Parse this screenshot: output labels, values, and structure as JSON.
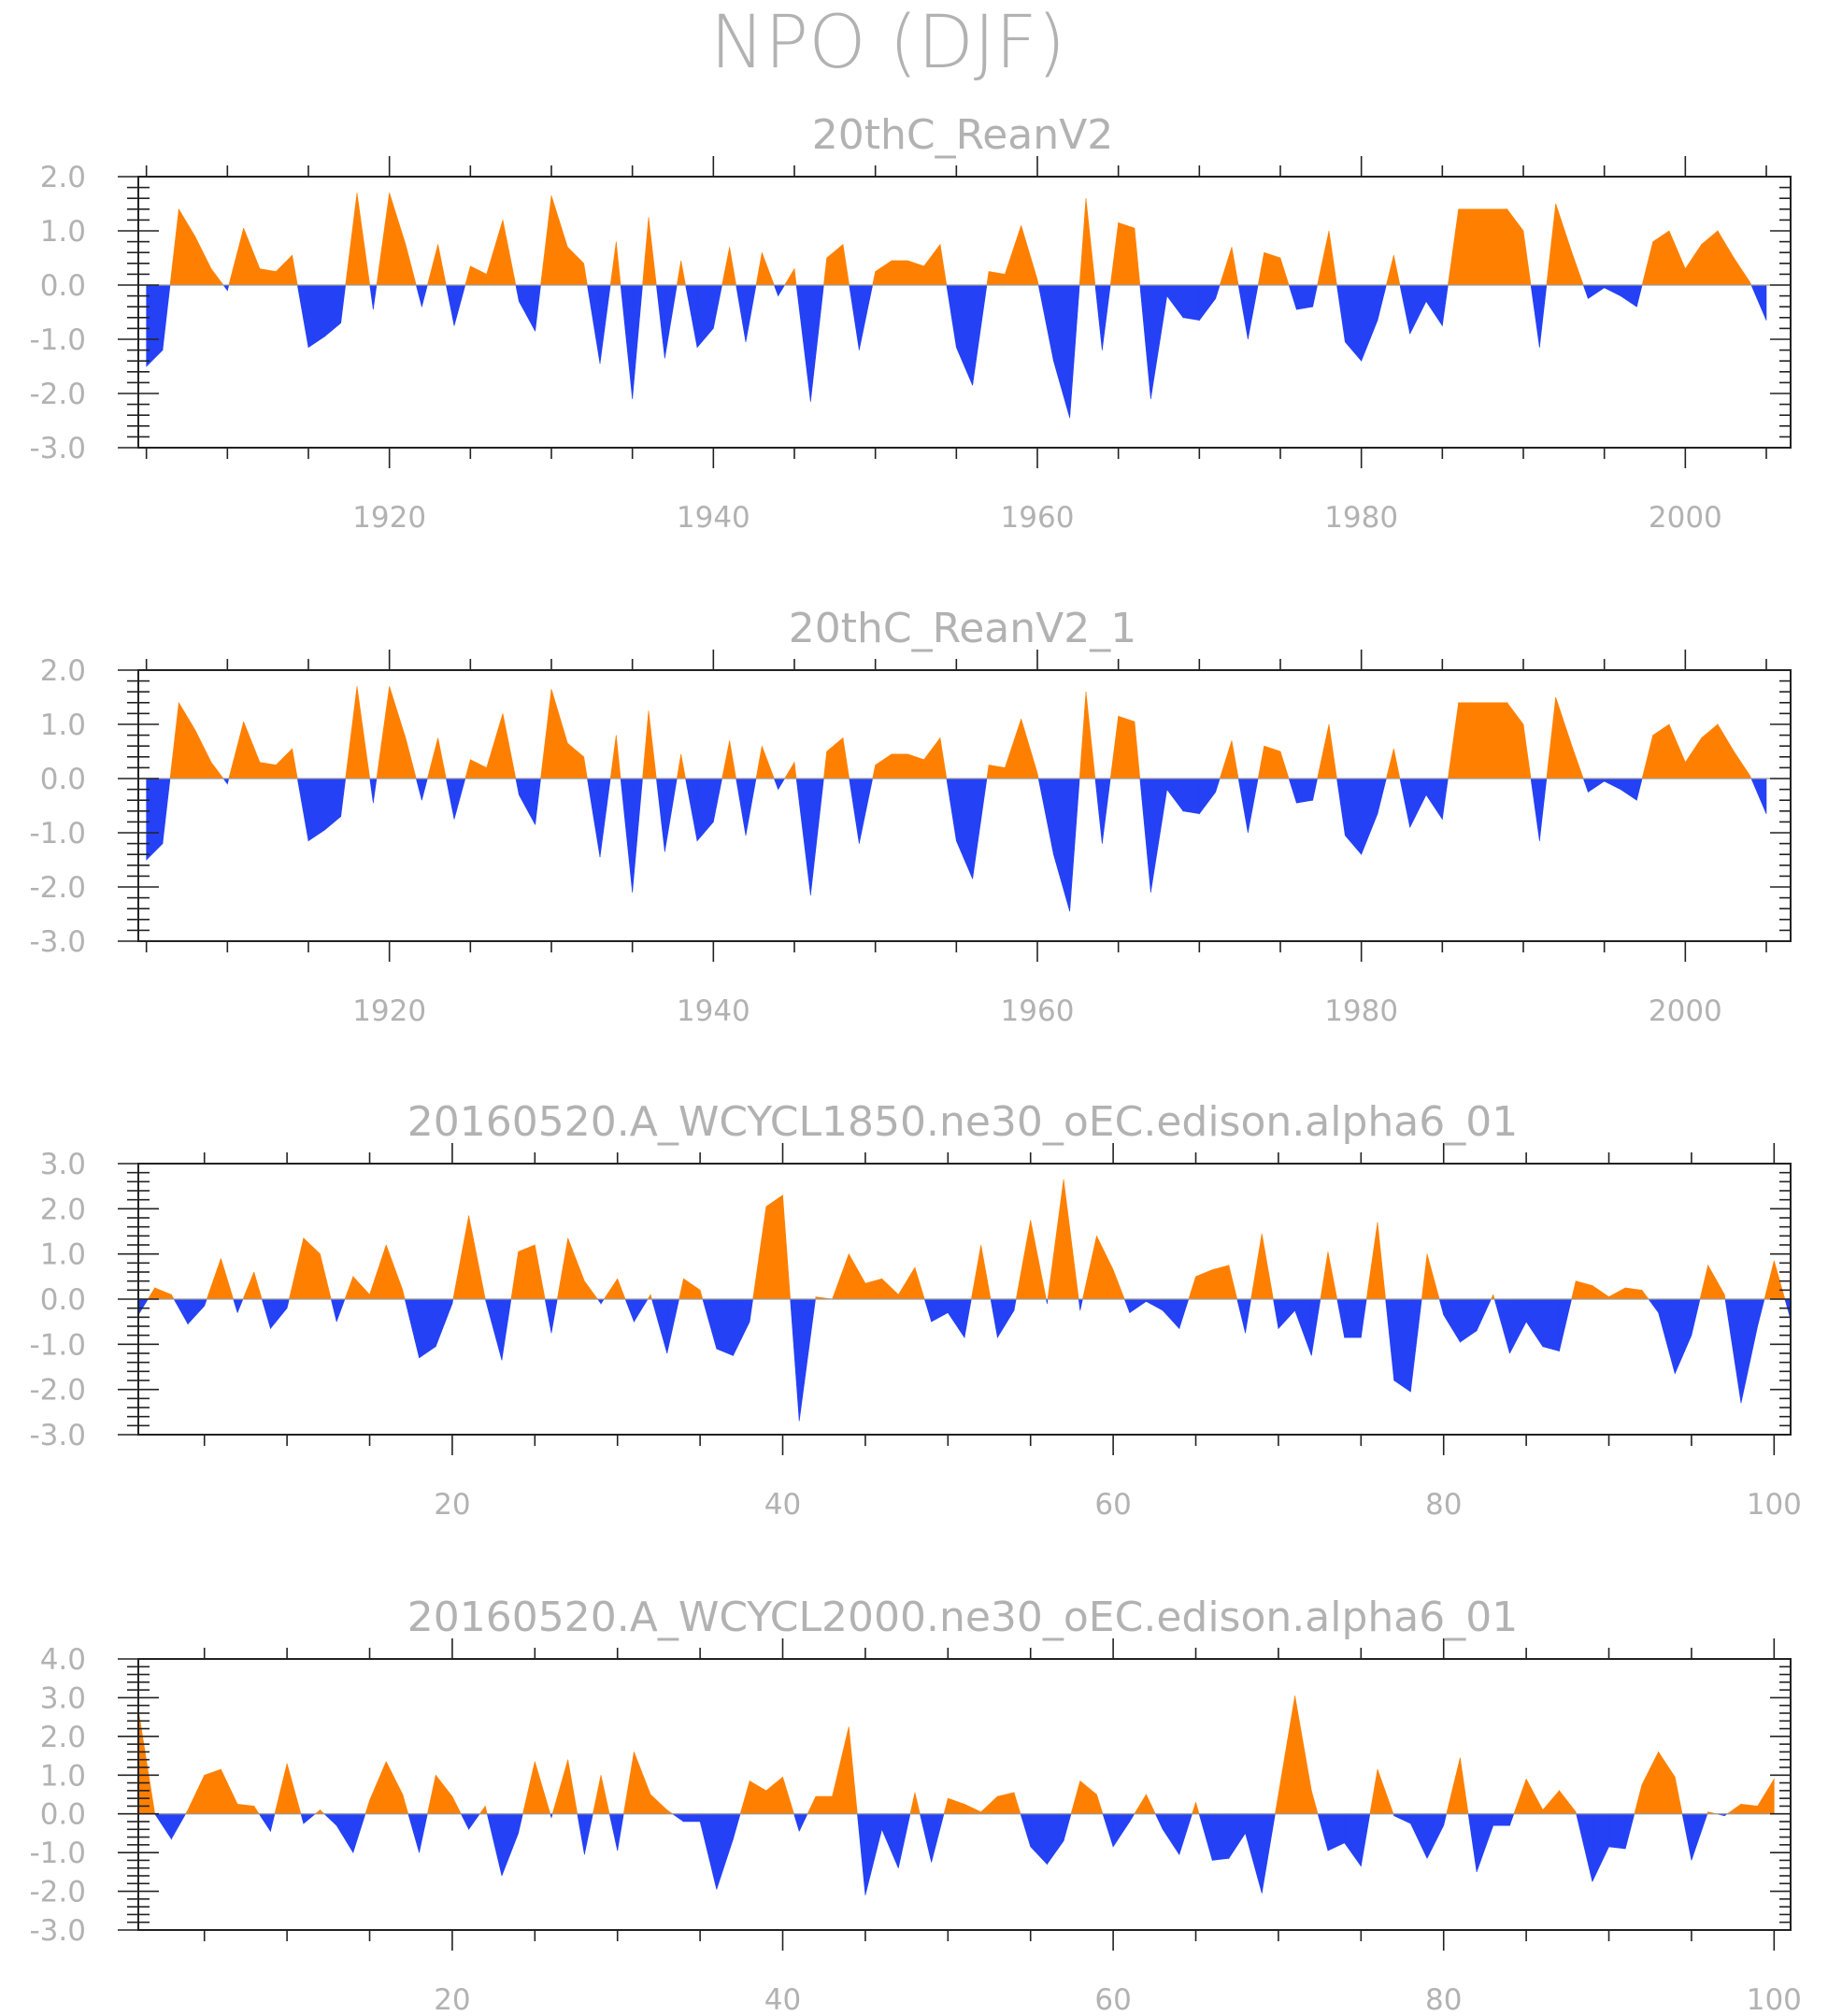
{
  "figure": {
    "title": "NPO (DJF)",
    "colors": {
      "positive": "#ff8000",
      "negative": "#2441f5",
      "text": "#b2b2b2",
      "frame": "#222222"
    }
  },
  "chart_data": [
    {
      "type": "area",
      "title": "20thC_ReanV2",
      "x_start": 1905,
      "xlim": [
        1904.5,
        2006.5
      ],
      "xticks": [
        1920,
        1940,
        1960,
        1980,
        2000
      ],
      "xtick_labels": [
        "1920",
        "1940",
        "1960",
        "1980",
        "2000"
      ],
      "ylim": [
        -3.0,
        2.0
      ],
      "yticks": [
        -3.0,
        -2.0,
        -1.0,
        0.0,
        1.0,
        2.0
      ],
      "ytick_labels": [
        "-3.0",
        "-2.0",
        "-1.0",
        "0.0",
        "1.0",
        "2.0"
      ],
      "values": [
        -1.5,
        -1.2,
        1.4,
        0.9,
        0.3,
        -0.1,
        1.05,
        0.3,
        0.25,
        0.55,
        -1.15,
        -0.95,
        -0.7,
        1.7,
        -0.45,
        1.7,
        0.75,
        -0.4,
        0.75,
        -0.75,
        0.35,
        0.2,
        1.2,
        -0.3,
        -0.85,
        1.65,
        0.7,
        0.4,
        -1.45,
        0.8,
        -2.1,
        1.25,
        -1.35,
        0.45,
        -1.15,
        -0.8,
        0.7,
        -1.05,
        0.6,
        -0.2,
        0.3,
        -2.15,
        0.5,
        0.75,
        -1.2,
        0.25,
        0.45,
        0.45,
        0.35,
        0.75,
        -1.15,
        -1.85,
        0.25,
        0.2,
        1.1,
        0.1,
        -1.4,
        -2.45,
        1.6,
        -1.2,
        1.15,
        1.05,
        -2.1,
        -0.2,
        -0.6,
        -0.65,
        -0.25,
        0.7,
        -1.0,
        0.6,
        0.5,
        -0.45,
        -0.4,
        1.0,
        -1.05,
        -1.4,
        -0.65,
        0.55,
        -0.9,
        -0.3,
        -0.75,
        1.4,
        1.4,
        1.4,
        1.4,
        1.0,
        -1.15,
        1.5,
        0.6,
        -0.25,
        -0.05,
        -0.2,
        -0.4,
        0.8,
        1.0,
        0.3,
        0.75,
        1.0,
        0.5,
        0.05,
        -0.65
      ]
    },
    {
      "type": "area",
      "title": "20thC_ReanV2_1",
      "x_start": 1905,
      "xlim": [
        1904.5,
        2006.5
      ],
      "xticks": [
        1920,
        1940,
        1960,
        1980,
        2000
      ],
      "xtick_labels": [
        "1920",
        "1940",
        "1960",
        "1980",
        "2000"
      ],
      "ylim": [
        -3.0,
        2.0
      ],
      "yticks": [
        -3.0,
        -2.0,
        -1.0,
        0.0,
        1.0,
        2.0
      ],
      "ytick_labels": [
        "-3.0",
        "-2.0",
        "-1.0",
        "0.0",
        "1.0",
        "2.0"
      ],
      "values": [
        -1.5,
        -1.2,
        1.4,
        0.9,
        0.3,
        -0.1,
        1.05,
        0.3,
        0.25,
        0.55,
        -1.15,
        -0.95,
        -0.7,
        1.7,
        -0.45,
        1.7,
        0.75,
        -0.4,
        0.75,
        -0.75,
        0.35,
        0.2,
        1.2,
        -0.3,
        -0.85,
        1.65,
        0.65,
        0.4,
        -1.45,
        0.8,
        -2.1,
        1.25,
        -1.35,
        0.45,
        -1.15,
        -0.8,
        0.7,
        -1.05,
        0.6,
        -0.2,
        0.3,
        -2.15,
        0.5,
        0.75,
        -1.2,
        0.25,
        0.45,
        0.45,
        0.35,
        0.75,
        -1.15,
        -1.85,
        0.25,
        0.2,
        1.1,
        0.1,
        -1.4,
        -2.45,
        1.6,
        -1.2,
        1.15,
        1.05,
        -2.1,
        -0.2,
        -0.6,
        -0.65,
        -0.25,
        0.7,
        -1.0,
        0.6,
        0.5,
        -0.45,
        -0.4,
        1.0,
        -1.05,
        -1.4,
        -0.65,
        0.55,
        -0.9,
        -0.3,
        -0.75,
        1.4,
        1.4,
        1.4,
        1.4,
        1.0,
        -1.15,
        1.5,
        0.6,
        -0.25,
        -0.05,
        -0.2,
        -0.4,
        0.8,
        1.0,
        0.3,
        0.75,
        1.0,
        0.5,
        0.05,
        -0.65
      ]
    },
    {
      "type": "area",
      "title": "20160520.A_WCYCL1850.ne30_oEC.edison.alpha6_01",
      "x_start": 1,
      "xlim": [
        1,
        101
      ],
      "xticks": [
        20,
        40,
        60,
        80,
        100
      ],
      "xtick_labels": [
        "20",
        "40",
        "60",
        "80",
        "100"
      ],
      "ylim": [
        -3.0,
        3.0
      ],
      "yticks": [
        -3.0,
        -2.0,
        -1.0,
        0.0,
        1.0,
        2.0,
        3.0
      ],
      "ytick_labels": [
        "-3.0",
        "-2.0",
        "-1.0",
        "0.0",
        "1.0",
        "2.0",
        "3.0"
      ],
      "values": [
        -0.35,
        0.25,
        0.1,
        -0.55,
        -0.15,
        0.9,
        -0.3,
        0.6,
        -0.65,
        -0.2,
        1.35,
        1.0,
        -0.5,
        0.5,
        0.1,
        1.2,
        0.2,
        -1.3,
        -1.05,
        -0.1,
        1.85,
        0.0,
        -1.35,
        1.05,
        1.2,
        -0.75,
        1.35,
        0.4,
        -0.1,
        0.45,
        -0.5,
        0.1,
        -1.2,
        0.45,
        0.2,
        -1.1,
        -1.25,
        -0.5,
        2.05,
        2.3,
        -2.7,
        0.05,
        0.0,
        1.0,
        0.35,
        0.45,
        0.1,
        0.7,
        -0.5,
        -0.3,
        -0.85,
        1.2,
        -0.85,
        -0.25,
        1.75,
        -0.1,
        2.65,
        -0.25,
        1.4,
        0.65,
        -0.3,
        -0.05,
        -0.25,
        -0.65,
        0.5,
        0.65,
        0.75,
        -0.75,
        1.45,
        -0.65,
        -0.25,
        -1.25,
        1.05,
        -0.85,
        -0.85,
        1.7,
        -1.8,
        -2.05,
        1.0,
        -0.35,
        -0.95,
        -0.7,
        0.1,
        -1.2,
        -0.5,
        -1.05,
        -1.15,
        0.4,
        0.3,
        0.05,
        0.25,
        0.2,
        -0.3,
        -1.65,
        -0.8,
        0.75,
        0.1,
        -2.3,
        -0.6,
        0.85,
        -0.45
      ]
    },
    {
      "type": "area",
      "title": "20160520.A_WCYCL2000.ne30_oEC.edison.alpha6_01",
      "x_start": 1,
      "xlim": [
        1,
        101
      ],
      "xticks": [
        20,
        40,
        60,
        80,
        100
      ],
      "xtick_labels": [
        "20",
        "40",
        "60",
        "80",
        "100"
      ],
      "ylim": [
        -3.0,
        4.0
      ],
      "yticks": [
        -3.0,
        -2.0,
        -1.0,
        0.0,
        1.0,
        2.0,
        3.0,
        4.0
      ],
      "ytick_labels": [
        "-3.0",
        "-2.0",
        "-1.0",
        "0.0",
        "1.0",
        "2.0",
        "3.0",
        "4.0"
      ],
      "values": [
        2.7,
        0.0,
        -0.65,
        0.1,
        1.0,
        1.15,
        0.25,
        0.2,
        -0.45,
        1.3,
        -0.25,
        0.1,
        -0.3,
        -1.0,
        0.35,
        1.35,
        0.5,
        -1.0,
        1.0,
        0.45,
        -0.4,
        0.2,
        -1.6,
        -0.5,
        1.35,
        -0.1,
        1.4,
        -1.05,
        1.0,
        -0.95,
        1.6,
        0.5,
        0.1,
        -0.2,
        -0.2,
        -1.95,
        -0.65,
        0.85,
        0.6,
        0.95,
        -0.45,
        0.45,
        0.45,
        2.25,
        -2.1,
        -0.4,
        -1.4,
        0.55,
        -1.25,
        0.4,
        0.25,
        0.05,
        0.45,
        0.55,
        -0.85,
        -1.3,
        -0.7,
        0.85,
        0.5,
        -0.85,
        -0.2,
        0.5,
        -0.4,
        -1.05,
        0.3,
        -1.2,
        -1.15,
        -0.5,
        -2.05,
        0.5,
        3.05,
        0.6,
        -0.95,
        -0.75,
        -1.35,
        1.15,
        -0.05,
        -0.25,
        -1.15,
        -0.3,
        1.45,
        -1.5,
        -0.3,
        -0.3,
        0.9,
        0.1,
        0.6,
        0.05,
        -1.75,
        -0.85,
        -0.9,
        0.75,
        1.6,
        0.95,
        -1.2,
        0.05,
        -0.05,
        0.25,
        0.2,
        0.9
      ]
    }
  ]
}
